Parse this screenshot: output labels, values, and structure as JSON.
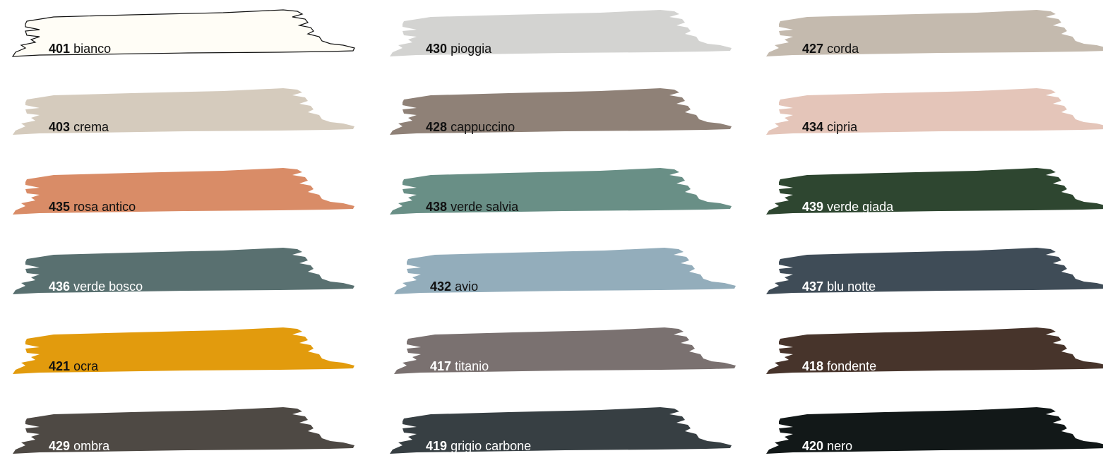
{
  "swatches": [
    {
      "code": "401",
      "name": "bianco",
      "color": "#fffdf6",
      "text_color": "#111111",
      "outlined": true
    },
    {
      "code": "430",
      "name": "pioggia",
      "color": "#d3d3d1",
      "text_color": "#111111",
      "outlined": false
    },
    {
      "code": "427",
      "name": "corda",
      "color": "#c4baae",
      "text_color": "#111111",
      "outlined": false
    },
    {
      "code": "403",
      "name": "crema",
      "color": "#d5cbbd",
      "text_color": "#111111",
      "outlined": false
    },
    {
      "code": "428",
      "name": "cappuccino",
      "color": "#8f8177",
      "text_color": "#111111",
      "outlined": false
    },
    {
      "code": "434",
      "name": "cipria",
      "color": "#e4c5b9",
      "text_color": "#111111",
      "outlined": false
    },
    {
      "code": "435",
      "name": "rosa antico",
      "color": "#d98c67",
      "text_color": "#111111",
      "outlined": false
    },
    {
      "code": "438",
      "name": "verde salvia",
      "color": "#698f86",
      "text_color": "#111111",
      "outlined": false
    },
    {
      "code": "439",
      "name": "verde giada",
      "color": "#2e4630",
      "text_color": "#ffffff",
      "outlined": false
    },
    {
      "code": "436",
      "name": "verde bosco",
      "color": "#597070",
      "text_color": "#ffffff",
      "outlined": false
    },
    {
      "code": "432",
      "name": "avio",
      "color": "#93adbb",
      "text_color": "#111111",
      "outlined": false
    },
    {
      "code": "437",
      "name": "blu notte",
      "color": "#3f4c57",
      "text_color": "#ffffff",
      "outlined": false
    },
    {
      "code": "421",
      "name": "ocra",
      "color": "#e29b0d",
      "text_color": "#111111",
      "outlined": false
    },
    {
      "code": "417",
      "name": "titanio",
      "color": "#7a7170",
      "text_color": "#ffffff",
      "outlined": false
    },
    {
      "code": "418",
      "name": "fondente",
      "color": "#47342b",
      "text_color": "#ffffff",
      "outlined": false
    },
    {
      "code": "429",
      "name": "ombra",
      "color": "#4e4944",
      "text_color": "#ffffff",
      "outlined": false
    },
    {
      "code": "419",
      "name": "grigio carbone",
      "color": "#373f43",
      "text_color": "#ffffff",
      "outlined": false
    },
    {
      "code": "420",
      "name": "nero",
      "color": "#121818",
      "text_color": "#ffffff",
      "outlined": false
    }
  ]
}
